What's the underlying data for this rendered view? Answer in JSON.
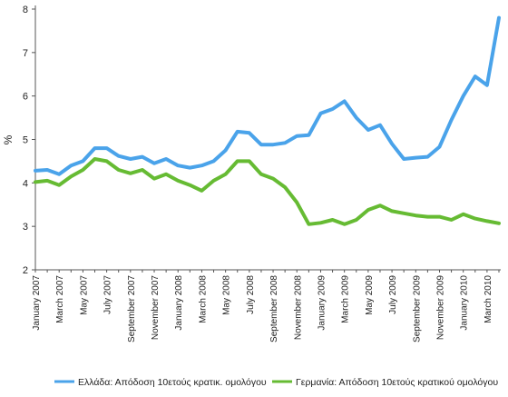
{
  "chart_data": {
    "type": "line",
    "ylabel": "%",
    "ylim": [
      2,
      8
    ],
    "yticks": [
      2,
      3,
      4,
      5,
      6,
      7,
      8
    ],
    "grid": false,
    "legend_position": "bottom",
    "x_tick_labels": [
      "January 2007",
      "March 2007",
      "May 2007",
      "July 2007",
      "September 2007",
      "November 2007",
      "January 2008",
      "March 2008",
      "May 2008",
      "July 2008",
      "September 2008",
      "November 2008",
      "January 2009",
      "March 2009",
      "May 2009",
      "July 2009",
      "September 2009",
      "November 2009",
      "January 2010",
      "March 2010"
    ],
    "series": [
      {
        "name": "Ελλάδα: Απόδοση 10ετούς κρατικ. ομολόγου",
        "color": "#4aa3ea",
        "points": [
          [
            0,
            4.28
          ],
          [
            1,
            4.3
          ],
          [
            2,
            4.2
          ],
          [
            3,
            4.4
          ],
          [
            4,
            4.5
          ],
          [
            5,
            4.8
          ],
          [
            6,
            4.8
          ],
          [
            7,
            4.62
          ],
          [
            8,
            4.55
          ],
          [
            9,
            4.6
          ],
          [
            10,
            4.45
          ],
          [
            11,
            4.55
          ],
          [
            12,
            4.4
          ],
          [
            13,
            4.35
          ],
          [
            14,
            4.4
          ],
          [
            15,
            4.5
          ],
          [
            16,
            4.75
          ],
          [
            17,
            5.18
          ],
          [
            18,
            5.15
          ],
          [
            19,
            4.88
          ],
          [
            20,
            4.88
          ],
          [
            21,
            4.92
          ],
          [
            22,
            5.08
          ],
          [
            23,
            5.1
          ],
          [
            24,
            5.6
          ],
          [
            25,
            5.7
          ],
          [
            26,
            5.88
          ],
          [
            27,
            5.5
          ],
          [
            28,
            5.22
          ],
          [
            29,
            5.33
          ],
          [
            30,
            4.9
          ],
          [
            31,
            4.55
          ],
          [
            32,
            4.58
          ],
          [
            33,
            4.6
          ],
          [
            34,
            4.83
          ],
          [
            35,
            5.45
          ],
          [
            36,
            6.0
          ],
          [
            37,
            6.45
          ],
          [
            38,
            6.25
          ],
          [
            39,
            7.8
          ]
        ]
      },
      {
        "name": "Γερμανία: Απόδοση 10ετούς κρατικού ομολόγου",
        "color": "#66bb33",
        "points": [
          [
            0,
            4.02
          ],
          [
            1,
            4.05
          ],
          [
            2,
            3.95
          ],
          [
            3,
            4.15
          ],
          [
            4,
            4.3
          ],
          [
            5,
            4.55
          ],
          [
            6,
            4.5
          ],
          [
            7,
            4.3
          ],
          [
            8,
            4.22
          ],
          [
            9,
            4.3
          ],
          [
            10,
            4.1
          ],
          [
            11,
            4.2
          ],
          [
            12,
            4.05
          ],
          [
            13,
            3.95
          ],
          [
            14,
            3.82
          ],
          [
            15,
            4.05
          ],
          [
            16,
            4.2
          ],
          [
            17,
            4.5
          ],
          [
            18,
            4.5
          ],
          [
            19,
            4.2
          ],
          [
            20,
            4.1
          ],
          [
            21,
            3.9
          ],
          [
            22,
            3.55
          ],
          [
            23,
            3.05
          ],
          [
            24,
            3.08
          ],
          [
            25,
            3.15
          ],
          [
            26,
            3.05
          ],
          [
            27,
            3.15
          ],
          [
            28,
            3.38
          ],
          [
            29,
            3.48
          ],
          [
            30,
            3.35
          ],
          [
            31,
            3.3
          ],
          [
            32,
            3.25
          ],
          [
            33,
            3.22
          ],
          [
            34,
            3.22
          ],
          [
            35,
            3.15
          ],
          [
            36,
            3.28
          ],
          [
            37,
            3.18
          ],
          [
            38,
            3.12
          ],
          [
            39,
            3.07
          ]
        ]
      }
    ]
  }
}
